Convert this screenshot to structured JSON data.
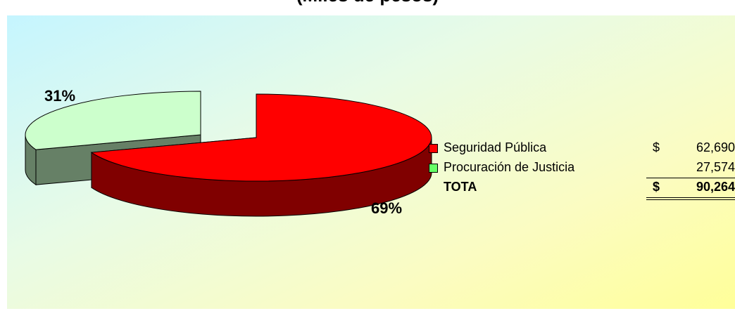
{
  "chart_data": {
    "type": "pie",
    "title": "(Miles de pesos)",
    "slices": [
      {
        "label": "Seguridad Pública",
        "currency": "$",
        "value": 62690,
        "value_text": "62,690",
        "percent_text": "69%",
        "color": "#ff0000"
      },
      {
        "label": "Procuración de Justicia",
        "currency": "",
        "value": 27574,
        "value_text": "27,574",
        "percent_text": "31%",
        "color": "#ccffcc"
      }
    ],
    "total": {
      "label": "TOTA",
      "currency": "$",
      "value": 90264,
      "value_text": "90,264"
    },
    "legend_position": "right",
    "style": "3d-exploded"
  },
  "colors": {
    "background_gradient_start": "#c5f5ff",
    "background_gradient_end": "#ffff99",
    "slice1_top": "#ff0000",
    "slice1_side": "#800000",
    "slice2_top": "#ccffcc",
    "slice2_side": "#668066"
  }
}
